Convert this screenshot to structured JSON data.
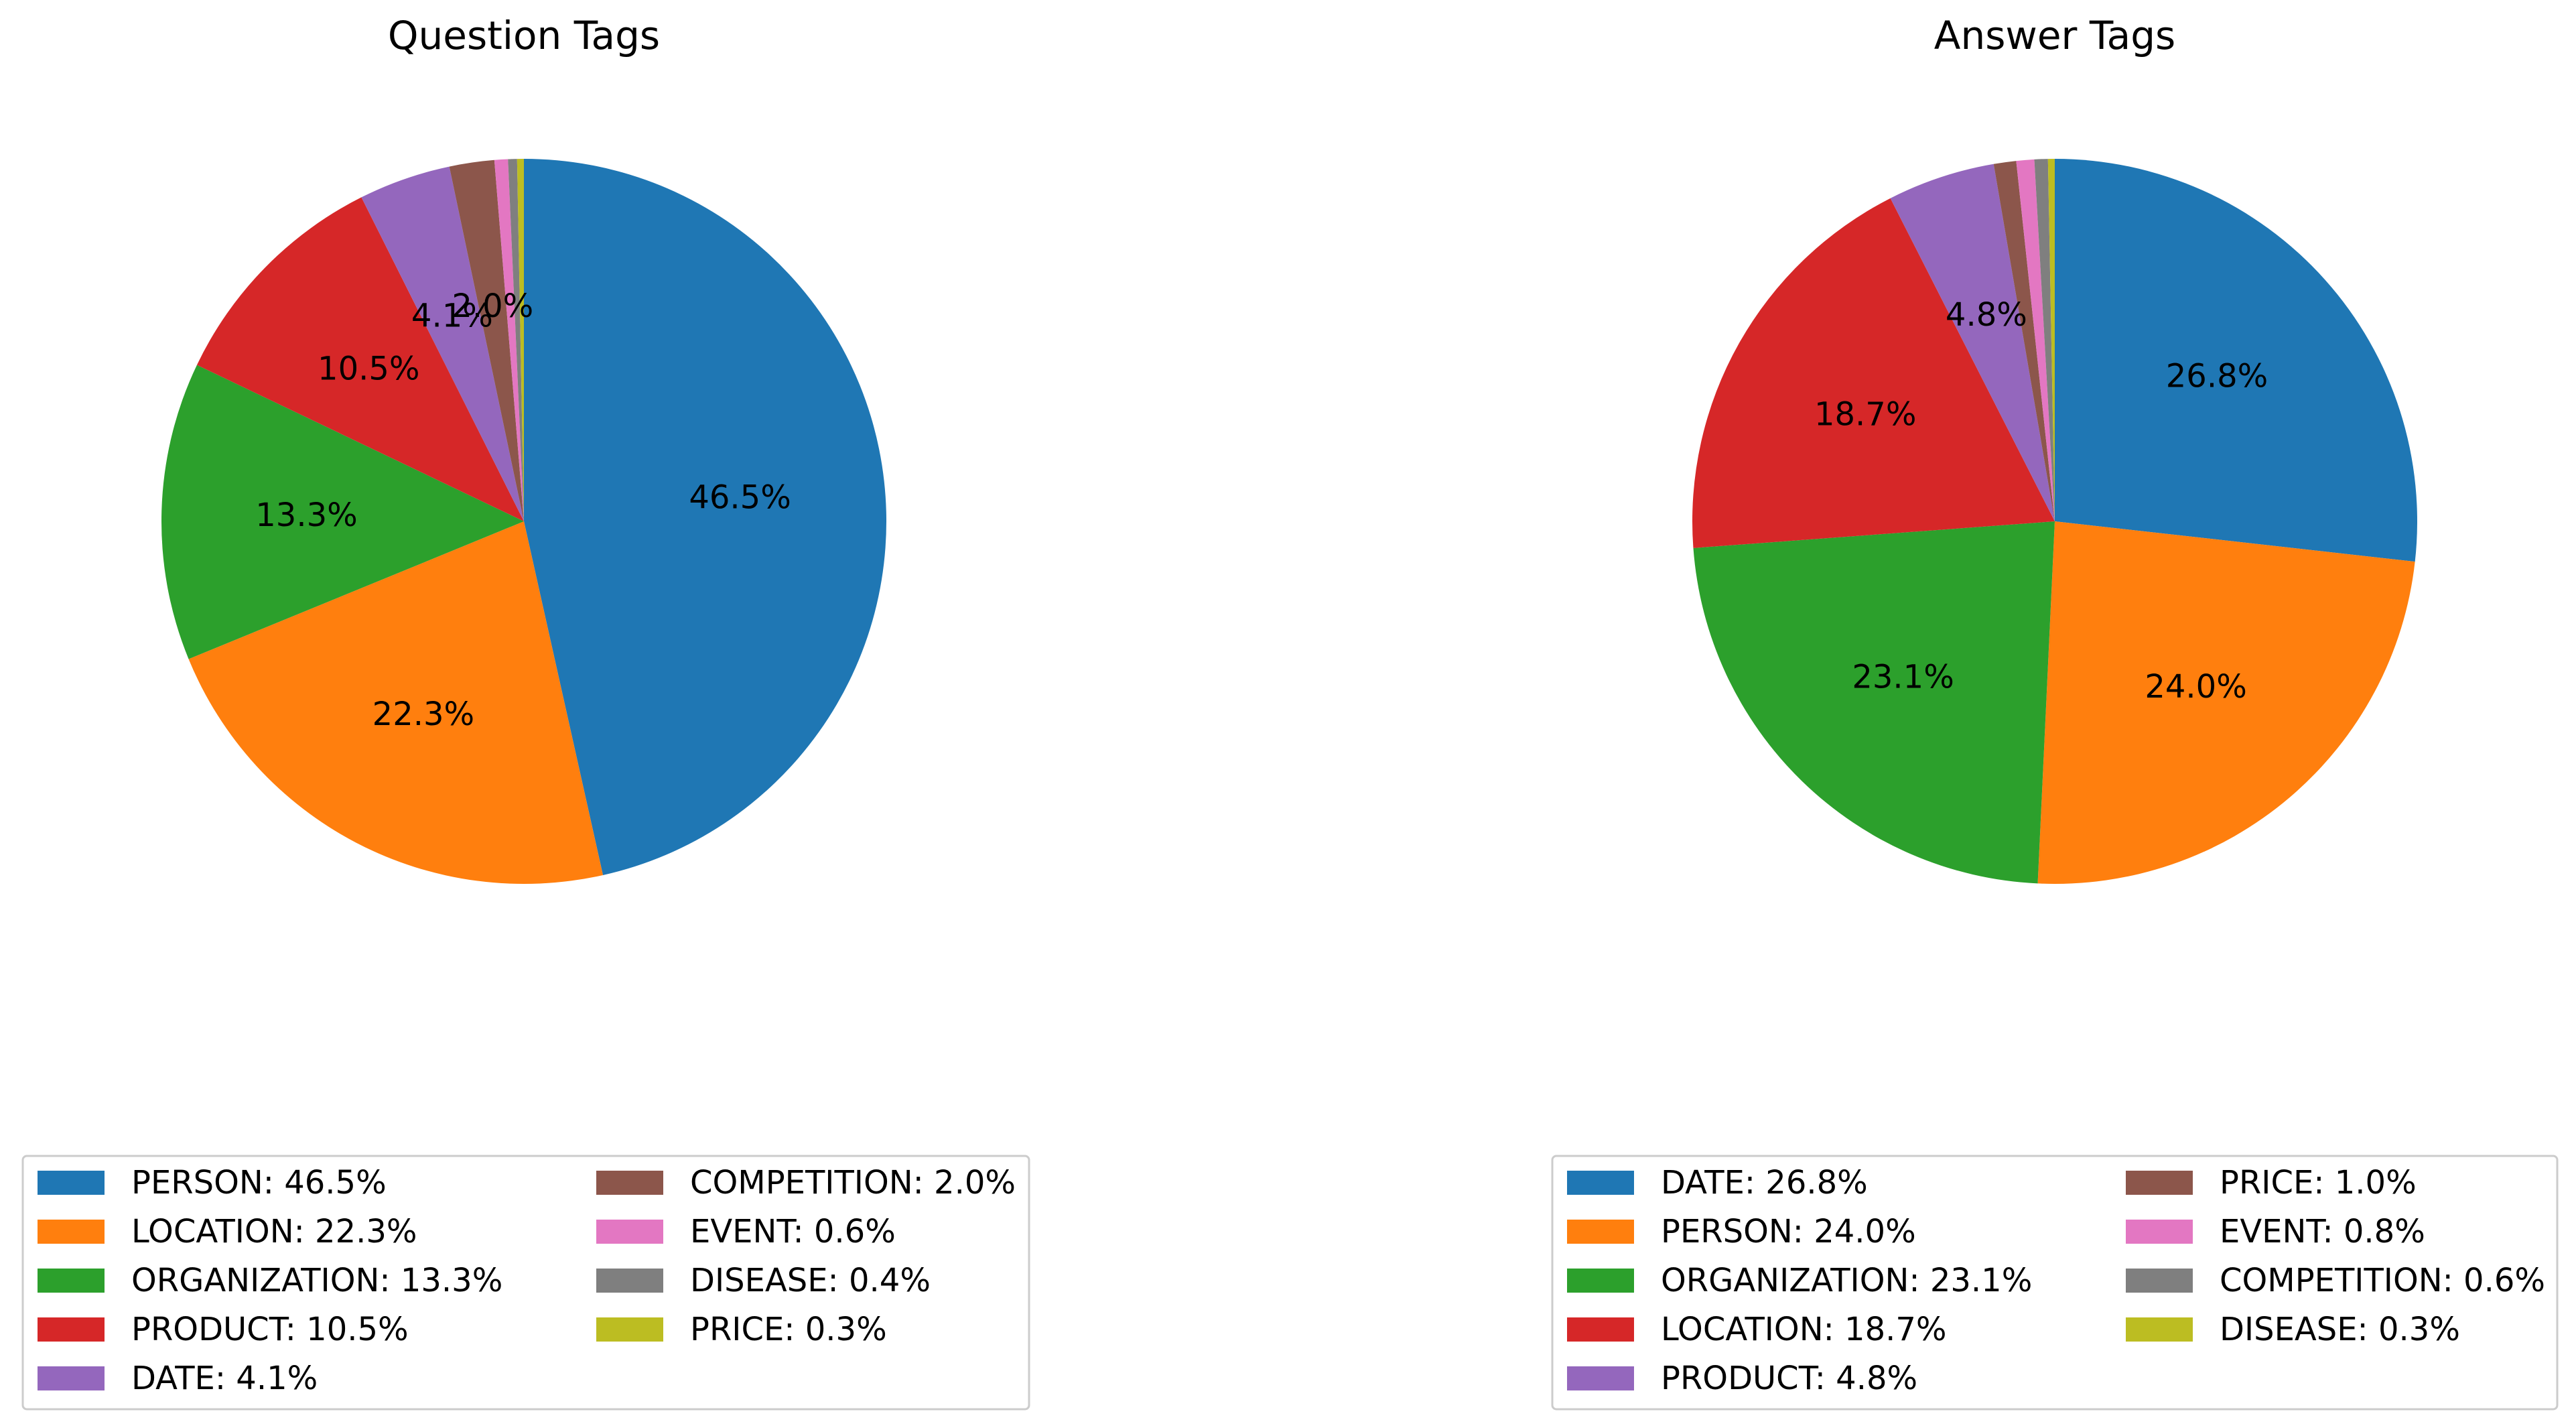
{
  "chart_data": [
    {
      "type": "pie",
      "title": "Question Tags",
      "start_angle_deg": 90,
      "direction": "clockwise",
      "legend_placement": "bottom",
      "legend_columns": 2,
      "slices": [
        {
          "label": "PERSON",
          "value": 46.5,
          "pct_label": "46.5%",
          "legend": "PERSON: 46.5%",
          "color": "#1f77b4"
        },
        {
          "label": "LOCATION",
          "value": 22.3,
          "pct_label": "22.3%",
          "legend": "LOCATION: 22.3%",
          "color": "#ff7f0e"
        },
        {
          "label": "ORGANIZATION",
          "value": 13.3,
          "pct_label": "13.3%",
          "legend": "ORGANIZATION: 13.3%",
          "color": "#2ca02c"
        },
        {
          "label": "PRODUCT",
          "value": 10.5,
          "pct_label": "10.5%",
          "legend": "PRODUCT: 10.5%",
          "color": "#d62728"
        },
        {
          "label": "DATE",
          "value": 4.1,
          "pct_label": "4.1%",
          "legend": "DATE: 4.1%",
          "color": "#9467bd"
        },
        {
          "label": "COMPETITION",
          "value": 2.0,
          "pct_label": "2.0%",
          "legend": "COMPETITION: 2.0%",
          "color": "#8c564b"
        },
        {
          "label": "EVENT",
          "value": 0.6,
          "pct_label": "",
          "legend": "EVENT: 0.6%",
          "color": "#e377c2"
        },
        {
          "label": "DISEASE",
          "value": 0.4,
          "pct_label": "",
          "legend": "DISEASE: 0.4%",
          "color": "#7f7f7f"
        },
        {
          "label": "PRICE",
          "value": 0.3,
          "pct_label": "",
          "legend": "PRICE: 0.3%",
          "color": "#bcbd22"
        }
      ]
    },
    {
      "type": "pie",
      "title": "Answer Tags",
      "start_angle_deg": 90,
      "direction": "clockwise",
      "legend_placement": "bottom",
      "legend_columns": 2,
      "slices": [
        {
          "label": "DATE",
          "value": 26.8,
          "pct_label": "26.8%",
          "legend": "DATE: 26.8%",
          "color": "#1f77b4"
        },
        {
          "label": "PERSON",
          "value": 24.0,
          "pct_label": "24.0%",
          "legend": "PERSON: 24.0%",
          "color": "#ff7f0e"
        },
        {
          "label": "ORGANIZATION",
          "value": 23.1,
          "pct_label": "23.1%",
          "legend": "ORGANIZATION: 23.1%",
          "color": "#2ca02c"
        },
        {
          "label": "LOCATION",
          "value": 18.7,
          "pct_label": "18.7%",
          "legend": "LOCATION: 18.7%",
          "color": "#d62728"
        },
        {
          "label": "PRODUCT",
          "value": 4.8,
          "pct_label": "4.8%",
          "legend": "PRODUCT: 4.8%",
          "color": "#9467bd"
        },
        {
          "label": "PRICE",
          "value": 1.0,
          "pct_label": "",
          "legend": "PRICE: 1.0%",
          "color": "#8c564b"
        },
        {
          "label": "EVENT",
          "value": 0.8,
          "pct_label": "",
          "legend": "EVENT: 0.8%",
          "color": "#e377c2"
        },
        {
          "label": "COMPETITION",
          "value": 0.6,
          "pct_label": "",
          "legend": "COMPETITION: 0.6%",
          "color": "#7f7f7f"
        },
        {
          "label": "DISEASE",
          "value": 0.3,
          "pct_label": "",
          "legend": "DISEASE: 0.3%",
          "color": "#bcbd22"
        }
      ]
    }
  ]
}
